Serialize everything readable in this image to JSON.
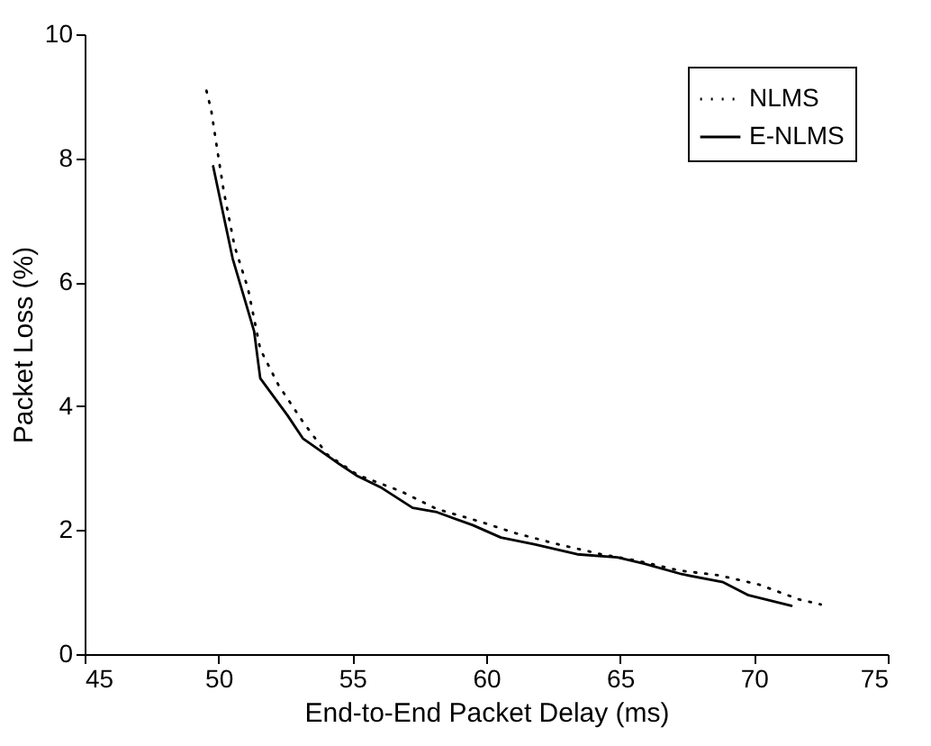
{
  "chart_data": {
    "type": "line",
    "xlabel": "End-to-End Packet Delay (ms)",
    "ylabel": "Packet Loss (%)",
    "xlim": [
      45,
      75
    ],
    "xticks": [
      45,
      50,
      55,
      60,
      65,
      70,
      75
    ],
    "ylim": [
      0,
      10
    ],
    "yticks": [
      0,
      2,
      4,
      6,
      8,
      10
    ],
    "grid": false,
    "legend": "top right",
    "marker": "none",
    "series": [
      {
        "name": "NLMS",
        "color": "#000000",
        "line_style": "dotted",
        "x": [
          49.55,
          49.73,
          49.96,
          50.2,
          50.6,
          51.1,
          51.56,
          52.24,
          53.15,
          54.06,
          55.2,
          56.8,
          58.16,
          59.75,
          61.1,
          62.7,
          64.3,
          65.6,
          67.2,
          68.7,
          70.2,
          71.7,
          72.5
        ],
        "values": [
          9.09,
          8.77,
          8.12,
          7.46,
          6.58,
          5.9,
          4.92,
          4.34,
          3.75,
          3.22,
          2.89,
          2.63,
          2.34,
          2.14,
          1.95,
          1.77,
          1.61,
          1.51,
          1.35,
          1.27,
          1.12,
          0.88,
          0.8
        ]
      },
      {
        "name": "E-NLMS",
        "color": "#000000",
        "line_style": "solid",
        "x": [
          49.8,
          50.53,
          51.33,
          51.56,
          52.58,
          53.15,
          54.5,
          55.2,
          56.1,
          57.25,
          58.16,
          59.5,
          60.55,
          61.8,
          63.4,
          64.9,
          65.9,
          67.3,
          68.85,
          69.8,
          71.4
        ],
        "values": [
          7.87,
          6.38,
          5.21,
          4.45,
          3.85,
          3.48,
          3.07,
          2.87,
          2.68,
          2.36,
          2.29,
          2.08,
          1.88,
          1.77,
          1.61,
          1.56,
          1.46,
          1.29,
          1.16,
          0.95,
          0.78
        ]
      }
    ]
  }
}
